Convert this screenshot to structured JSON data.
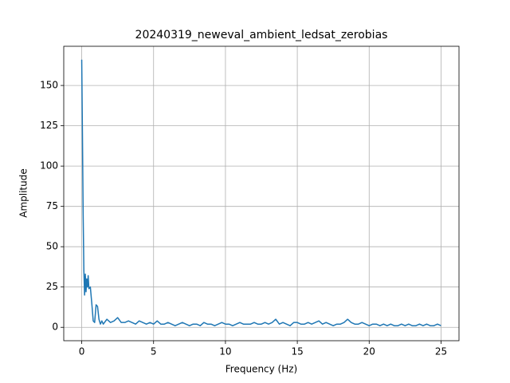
{
  "chart_data": {
    "type": "line",
    "title": "20240319_neweval_ambient_ledsat_zerobias",
    "x_label": "Frequency (Hz)",
    "y_label": "Amplitude",
    "x": [
      0,
      0.05,
      0.1,
      0.15,
      0.2,
      0.25,
      0.3,
      0.35,
      0.4,
      0.45,
      0.5,
      0.6,
      0.7,
      0.8,
      0.9,
      1,
      1.1,
      1.2,
      1.3,
      1.4,
      1.5,
      1.75,
      2,
      2.25,
      2.5,
      2.75,
      3,
      3.25,
      3.5,
      3.75,
      4,
      4.25,
      4.5,
      4.75,
      5,
      5.25,
      5.5,
      5.75,
      6,
      6.25,
      6.5,
      6.75,
      7,
      7.25,
      7.5,
      7.75,
      8,
      8.25,
      8.5,
      8.75,
      9,
      9.25,
      9.5,
      9.75,
      10,
      10.25,
      10.5,
      10.75,
      11,
      11.25,
      11.5,
      11.75,
      12,
      12.25,
      12.5,
      12.75,
      13,
      13.25,
      13.5,
      13.75,
      14,
      14.25,
      14.5,
      14.75,
      15,
      15.25,
      15.5,
      15.75,
      16,
      16.25,
      16.5,
      16.75,
      17,
      17.25,
      17.5,
      17.75,
      18,
      18.25,
      18.5,
      18.75,
      19,
      19.25,
      19.5,
      19.75,
      20,
      20.25,
      20.5,
      20.75,
      21,
      21.25,
      21.5,
      21.75,
      22,
      22.25,
      22.5,
      22.75,
      23,
      23.25,
      23.5,
      23.75,
      24,
      24.25,
      24.5,
      24.75,
      25
    ],
    "series": [
      {
        "color": "#1f77b4",
        "values": [
          166,
          120,
          70,
          35,
          20,
          33,
          22,
          30,
          25,
          32,
          24,
          25,
          15,
          4,
          3,
          14,
          13,
          5,
          2,
          4,
          2,
          5,
          3,
          4,
          6,
          3,
          3,
          4,
          3,
          2,
          4,
          3,
          2,
          3,
          2,
          4,
          2,
          2,
          3,
          2,
          1,
          2,
          3,
          2,
          1,
          2,
          2,
          1,
          3,
          2,
          2,
          1,
          2,
          3,
          2,
          2,
          1,
          2,
          3,
          2,
          2,
          2,
          3,
          2,
          2,
          3,
          2,
          3,
          5,
          2,
          3,
          2,
          1,
          3,
          3,
          2,
          2,
          3,
          2,
          3,
          4,
          2,
          3,
          2,
          1,
          2,
          2,
          3,
          5,
          3,
          2,
          2,
          3,
          2,
          1,
          2,
          2,
          1,
          2,
          1,
          2,
          1,
          1,
          2,
          1,
          2,
          1,
          1,
          2,
          1,
          2,
          1,
          1,
          2,
          1
        ]
      }
    ],
    "xlim": [
      -1.25,
      26.25
    ],
    "ylim": [
      -8.3,
      174.3
    ],
    "xticks": [
      0,
      5,
      10,
      15,
      20,
      25
    ],
    "yticks": [
      0,
      25,
      50,
      75,
      100,
      125,
      150
    ],
    "grid": true
  }
}
